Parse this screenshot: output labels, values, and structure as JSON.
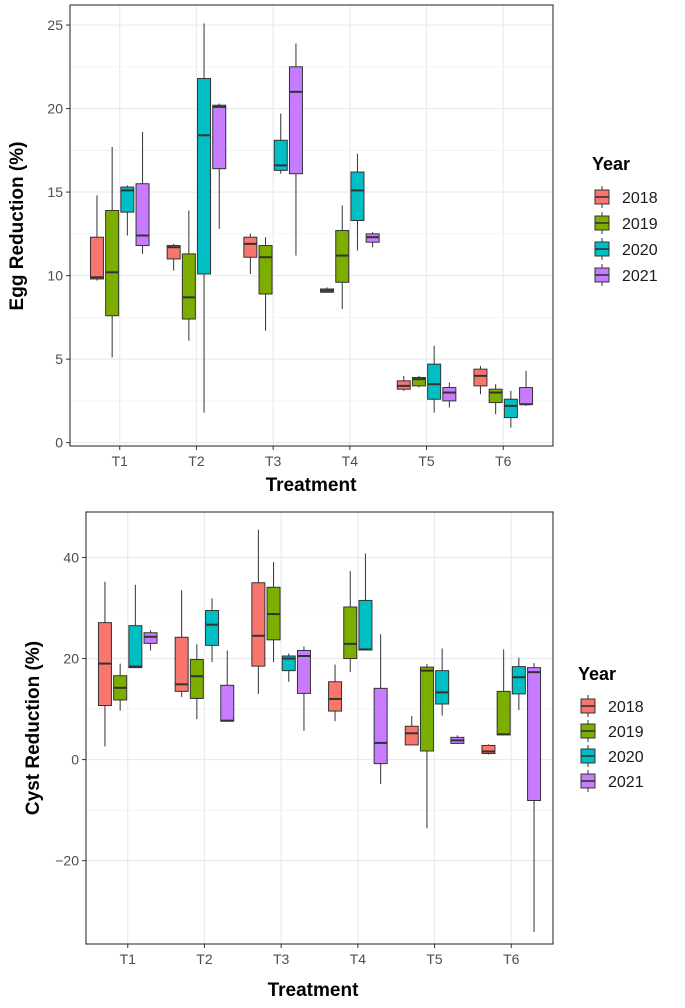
{
  "chart_data": [
    {
      "type": "boxplot",
      "xlabel": "Treatment",
      "ylabel": "Egg Reduction (%)",
      "ylim": [
        -0.2,
        26.2
      ],
      "yticks": [
        0,
        5,
        10,
        15,
        20,
        25
      ],
      "categories": [
        "T1",
        "T2",
        "T3",
        "T4",
        "T5",
        "T6"
      ],
      "legend": {
        "title": "Year",
        "position": "right"
      },
      "grid": true,
      "series": [
        {
          "name": "2018",
          "color": "#F8766D",
          "boxes": [
            {
              "min": 9.7,
              "q1": 9.8,
              "median": 9.9,
              "q3": 12.3,
              "max": 14.8
            },
            {
              "min": 10.3,
              "q1": 11.0,
              "median": 11.7,
              "q3": 11.8,
              "max": 11.9
            },
            {
              "min": 10.1,
              "q1": 11.1,
              "median": 11.9,
              "q3": 12.3,
              "max": 12.5
            },
            {
              "min": 9.0,
              "q1": 9.0,
              "median": 9.1,
              "q3": 9.2,
              "max": 9.3
            },
            {
              "min": 3.1,
              "q1": 3.2,
              "median": 3.4,
              "q3": 3.7,
              "max": 4.0
            },
            {
              "min": 2.9,
              "q1": 3.4,
              "median": 4.0,
              "q3": 4.4,
              "max": 4.6
            }
          ]
        },
        {
          "name": "2019",
          "color": "#7CAE00",
          "boxes": [
            {
              "min": 5.1,
              "q1": 7.6,
              "median": 10.2,
              "q3": 13.9,
              "max": 17.7
            },
            {
              "min": 6.1,
              "q1": 7.4,
              "median": 8.7,
              "q3": 11.3,
              "max": 13.9
            },
            {
              "min": 6.7,
              "q1": 8.9,
              "median": 11.1,
              "q3": 11.8,
              "max": 12.3
            },
            {
              "min": 8.0,
              "q1": 9.6,
              "median": 11.2,
              "q3": 12.7,
              "max": 14.2
            },
            {
              "min": 3.3,
              "q1": 3.4,
              "median": 3.8,
              "q3": 3.9,
              "max": 4.0
            },
            {
              "min": 1.7,
              "q1": 2.4,
              "median": 3.0,
              "q3": 3.2,
              "max": 3.5
            }
          ]
        },
        {
          "name": "2020",
          "color": "#00BFC4",
          "boxes": [
            {
              "min": 12.4,
              "q1": 13.8,
              "median": 15.1,
              "q3": 15.3,
              "max": 15.4
            },
            {
              "min": 1.8,
              "q1": 10.1,
              "median": 18.4,
              "q3": 21.8,
              "max": 25.1
            },
            {
              "min": 16.1,
              "q1": 16.3,
              "median": 16.6,
              "q3": 18.1,
              "max": 19.7
            },
            {
              "min": 11.5,
              "q1": 13.3,
              "median": 15.1,
              "q3": 16.2,
              "max": 17.3
            },
            {
              "min": 1.8,
              "q1": 2.6,
              "median": 3.5,
              "q3": 4.7,
              "max": 5.8
            },
            {
              "min": 0.9,
              "q1": 1.5,
              "median": 2.2,
              "q3": 2.6,
              "max": 3.1
            }
          ]
        },
        {
          "name": "2021",
          "color": "#C77CFF",
          "boxes": [
            {
              "min": 11.3,
              "q1": 11.8,
              "median": 12.4,
              "q3": 15.5,
              "max": 18.6
            },
            {
              "min": 12.8,
              "q1": 16.4,
              "median": 20.1,
              "q3": 20.2,
              "max": 20.3
            },
            {
              "min": 11.2,
              "q1": 16.1,
              "median": 21.0,
              "q3": 22.5,
              "max": 23.9
            },
            {
              "min": 11.7,
              "q1": 12.0,
              "median": 12.3,
              "q3": 12.5,
              "max": 12.6
            },
            {
              "min": 2.1,
              "q1": 2.5,
              "median": 3.0,
              "q3": 3.3,
              "max": 3.6
            },
            {
              "min": 2.2,
              "q1": 2.3,
              "median": 2.3,
              "q3": 3.3,
              "max": 4.3
            }
          ]
        }
      ]
    },
    {
      "type": "boxplot",
      "xlabel": "Treatment",
      "ylabel": "Cyst Reduction (%)",
      "ylim": [
        -36.5,
        49
      ],
      "yticks": [
        -20,
        0,
        20,
        40
      ],
      "categories": [
        "T1",
        "T2",
        "T3",
        "T4",
        "T5",
        "T6"
      ],
      "legend": {
        "title": "Year",
        "position": "right"
      },
      "grid": true,
      "series": [
        {
          "name": "2018",
          "color": "#F8766D",
          "boxes": [
            {
              "min": 2.6,
              "q1": 10.7,
              "median": 19.0,
              "q3": 27.1,
              "max": 35.2
            },
            {
              "min": 12.4,
              "q1": 13.5,
              "median": 14.9,
              "q3": 24.2,
              "max": 33.5
            },
            {
              "min": 13.0,
              "q1": 18.5,
              "median": 24.5,
              "q3": 35.0,
              "max": 45.5
            },
            {
              "min": 7.6,
              "q1": 9.6,
              "median": 12.0,
              "q3": 15.4,
              "max": 18.8
            },
            {
              "min": 2.9,
              "q1": 2.9,
              "median": 5.2,
              "q3": 6.6,
              "max": 8.6
            },
            {
              "min": 1.0,
              "q1": 1.2,
              "median": 1.6,
              "q3": 2.8,
              "max": 3.0
            }
          ]
        },
        {
          "name": "2019",
          "color": "#7CAE00",
          "boxes": [
            {
              "min": 9.7,
              "q1": 11.8,
              "median": 14.2,
              "q3": 16.6,
              "max": 19.0
            },
            {
              "min": 8.0,
              "q1": 12.1,
              "median": 16.5,
              "q3": 19.8,
              "max": 22.8
            },
            {
              "min": 19.3,
              "q1": 23.7,
              "median": 28.8,
              "q3": 34.1,
              "max": 39.1
            },
            {
              "min": 17.3,
              "q1": 20.0,
              "median": 22.9,
              "q3": 30.2,
              "max": 37.3
            },
            {
              "min": -13.6,
              "q1": 1.7,
              "median": 17.6,
              "q3": 18.3,
              "max": 18.9
            },
            {
              "min": 4.8,
              "q1": 4.9,
              "median": 5.0,
              "q3": 13.5,
              "max": 21.8
            }
          ]
        },
        {
          "name": "2020",
          "color": "#00BFC4",
          "boxes": [
            {
              "min": 18.1,
              "q1": 18.2,
              "median": 18.4,
              "q3": 26.5,
              "max": 34.6
            },
            {
              "min": 19.3,
              "q1": 22.6,
              "median": 26.7,
              "q3": 29.5,
              "max": 31.9
            },
            {
              "min": 15.4,
              "q1": 17.6,
              "median": 20.0,
              "q3": 20.5,
              "max": 21.0
            },
            {
              "min": 21.7,
              "q1": 21.7,
              "median": 21.8,
              "q3": 31.5,
              "max": 40.8
            },
            {
              "min": 8.7,
              "q1": 11.0,
              "median": 13.3,
              "q3": 17.6,
              "max": 22.0
            },
            {
              "min": 9.8,
              "q1": 13.0,
              "median": 16.3,
              "q3": 18.4,
              "max": 20.2
            }
          ]
        },
        {
          "name": "2021",
          "color": "#C77CFF",
          "boxes": [
            {
              "min": 21.6,
              "q1": 23.0,
              "median": 24.3,
              "q3": 25.1,
              "max": 25.6
            },
            {
              "min": 7.5,
              "q1": 7.6,
              "median": 7.7,
              "q3": 14.7,
              "max": 21.6
            },
            {
              "min": 5.7,
              "q1": 13.1,
              "median": 20.5,
              "q3": 21.6,
              "max": 22.4
            },
            {
              "min": -4.8,
              "q1": -0.8,
              "median": 3.3,
              "q3": 14.1,
              "max": 24.8
            },
            {
              "min": 3.1,
              "q1": 3.2,
              "median": 3.8,
              "q3": 4.4,
              "max": 4.8
            },
            {
              "min": -34.1,
              "q1": -8.1,
              "median": 17.3,
              "q3": 18.2,
              "max": 19.1
            }
          ]
        }
      ]
    }
  ]
}
